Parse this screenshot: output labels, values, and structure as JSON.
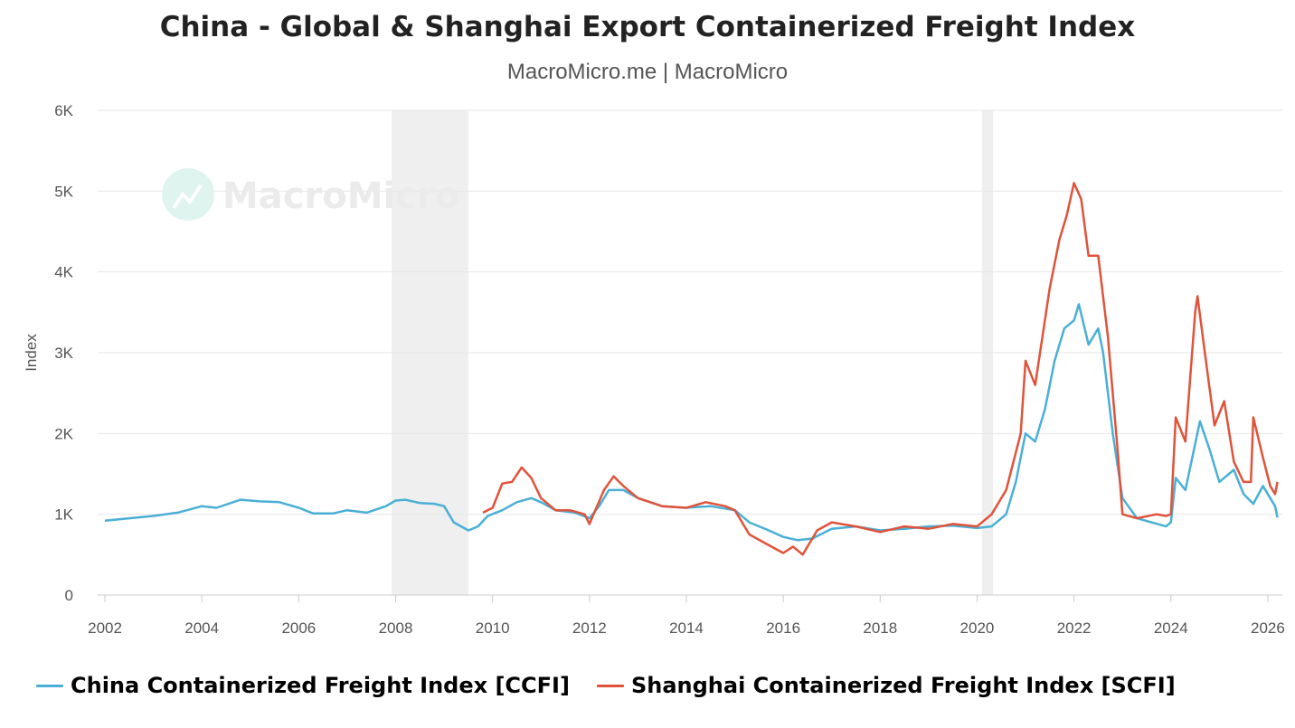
{
  "header": {
    "title": "China - Global & Shanghai Export Containerized Freight Index",
    "subtitle": "MacroMicro.me | MacroMicro"
  },
  "watermark": {
    "text": "MacroMicro",
    "icon": "chart-logo-icon"
  },
  "colors": {
    "ccfi": "#4aafd6",
    "scfi": "#e0533a",
    "recession": "#efefef",
    "grid": "#e6e6e6"
  },
  "chart_data": {
    "type": "line",
    "title": "China - Global & Shanghai Export Containerized Freight Index",
    "subtitle": "MacroMicro.me | MacroMicro",
    "ylabel": "Index",
    "xlabel": "",
    "xlim": [
      2001.85,
      2026.3
    ],
    "ylim": [
      0,
      6000
    ],
    "xticks": [
      2002,
      2004,
      2006,
      2008,
      2010,
      2012,
      2014,
      2016,
      2018,
      2020,
      2022,
      2024,
      2026
    ],
    "yticks": [
      0,
      1000,
      2000,
      3000,
      4000,
      5000,
      6000
    ],
    "ytick_labels": [
      "0",
      "1K",
      "2K",
      "3K",
      "4K",
      "5K",
      "6K"
    ],
    "grid": true,
    "legend_position": "bottom-left",
    "shaded_periods": [
      [
        2007.92,
        2009.5
      ],
      [
        2020.1,
        2020.33
      ]
    ],
    "series": [
      {
        "name": "China Containerized Freight Index [CCFI]",
        "color": "#4aafd6",
        "points": [
          [
            2002.0,
            920
          ],
          [
            2002.5,
            950
          ],
          [
            2003.0,
            980
          ],
          [
            2003.5,
            1020
          ],
          [
            2004.0,
            1100
          ],
          [
            2004.3,
            1080
          ],
          [
            2004.8,
            1180
          ],
          [
            2005.2,
            1160
          ],
          [
            2005.6,
            1150
          ],
          [
            2006.0,
            1080
          ],
          [
            2006.3,
            1010
          ],
          [
            2006.7,
            1010
          ],
          [
            2007.0,
            1050
          ],
          [
            2007.4,
            1020
          ],
          [
            2007.8,
            1100
          ],
          [
            2008.0,
            1170
          ],
          [
            2008.2,
            1180
          ],
          [
            2008.5,
            1140
          ],
          [
            2008.8,
            1130
          ],
          [
            2009.0,
            1100
          ],
          [
            2009.2,
            900
          ],
          [
            2009.5,
            800
          ],
          [
            2009.7,
            850
          ],
          [
            2009.9,
            980
          ],
          [
            2010.2,
            1050
          ],
          [
            2010.5,
            1150
          ],
          [
            2010.8,
            1200
          ],
          [
            2011.0,
            1150
          ],
          [
            2011.3,
            1050
          ],
          [
            2011.7,
            1020
          ],
          [
            2012.0,
            950
          ],
          [
            2012.2,
            1100
          ],
          [
            2012.4,
            1300
          ],
          [
            2012.7,
            1300
          ],
          [
            2013.0,
            1200
          ],
          [
            2013.5,
            1100
          ],
          [
            2014.0,
            1080
          ],
          [
            2014.5,
            1100
          ],
          [
            2015.0,
            1050
          ],
          [
            2015.3,
            900
          ],
          [
            2015.7,
            800
          ],
          [
            2016.0,
            720
          ],
          [
            2016.3,
            680
          ],
          [
            2016.6,
            700
          ],
          [
            2017.0,
            820
          ],
          [
            2017.5,
            850
          ],
          [
            2018.0,
            800
          ],
          [
            2018.5,
            820
          ],
          [
            2019.0,
            850
          ],
          [
            2019.5,
            860
          ],
          [
            2020.0,
            830
          ],
          [
            2020.3,
            850
          ],
          [
            2020.6,
            1000
          ],
          [
            2020.8,
            1400
          ],
          [
            2021.0,
            2000
          ],
          [
            2021.2,
            1900
          ],
          [
            2021.4,
            2300
          ],
          [
            2021.6,
            2900
          ],
          [
            2021.8,
            3300
          ],
          [
            2022.0,
            3400
          ],
          [
            2022.1,
            3600
          ],
          [
            2022.3,
            3100
          ],
          [
            2022.5,
            3300
          ],
          [
            2022.6,
            3000
          ],
          [
            2022.8,
            2000
          ],
          [
            2023.0,
            1200
          ],
          [
            2023.3,
            950
          ],
          [
            2023.6,
            900
          ],
          [
            2023.9,
            850
          ],
          [
            2024.0,
            900
          ],
          [
            2024.1,
            1450
          ],
          [
            2024.3,
            1300
          ],
          [
            2024.6,
            2150
          ],
          [
            2024.8,
            1800
          ],
          [
            2025.0,
            1400
          ],
          [
            2025.3,
            1550
          ],
          [
            2025.5,
            1250
          ],
          [
            2025.7,
            1130
          ],
          [
            2025.9,
            1350
          ],
          [
            2026.0,
            1250
          ],
          [
            2026.15,
            1100
          ],
          [
            2026.2,
            960
          ]
        ]
      },
      {
        "name": "Shanghai Containerized Freight Index [SCFI]",
        "color": "#e0533a",
        "points": [
          [
            2009.8,
            1020
          ],
          [
            2010.0,
            1080
          ],
          [
            2010.2,
            1380
          ],
          [
            2010.4,
            1400
          ],
          [
            2010.6,
            1580
          ],
          [
            2010.8,
            1450
          ],
          [
            2011.0,
            1200
          ],
          [
            2011.3,
            1050
          ],
          [
            2011.6,
            1050
          ],
          [
            2011.9,
            1000
          ],
          [
            2012.0,
            880
          ],
          [
            2012.3,
            1300
          ],
          [
            2012.5,
            1470
          ],
          [
            2012.7,
            1350
          ],
          [
            2013.0,
            1200
          ],
          [
            2013.5,
            1100
          ],
          [
            2014.0,
            1080
          ],
          [
            2014.4,
            1150
          ],
          [
            2014.8,
            1100
          ],
          [
            2015.0,
            1050
          ],
          [
            2015.3,
            750
          ],
          [
            2015.6,
            650
          ],
          [
            2016.0,
            520
          ],
          [
            2016.2,
            600
          ],
          [
            2016.4,
            500
          ],
          [
            2016.7,
            800
          ],
          [
            2017.0,
            900
          ],
          [
            2017.5,
            850
          ],
          [
            2018.0,
            780
          ],
          [
            2018.5,
            850
          ],
          [
            2019.0,
            820
          ],
          [
            2019.5,
            880
          ],
          [
            2020.0,
            850
          ],
          [
            2020.3,
            1000
          ],
          [
            2020.6,
            1300
          ],
          [
            2020.9,
            2000
          ],
          [
            2021.0,
            2900
          ],
          [
            2021.2,
            2600
          ],
          [
            2021.5,
            3800
          ],
          [
            2021.7,
            4400
          ],
          [
            2021.85,
            4700
          ],
          [
            2022.0,
            5100
          ],
          [
            2022.15,
            4900
          ],
          [
            2022.3,
            4200
          ],
          [
            2022.5,
            4200
          ],
          [
            2022.7,
            3200
          ],
          [
            2022.9,
            1800
          ],
          [
            2023.0,
            1000
          ],
          [
            2023.3,
            950
          ],
          [
            2023.7,
            1000
          ],
          [
            2023.9,
            980
          ],
          [
            2024.0,
            1000
          ],
          [
            2024.1,
            2200
          ],
          [
            2024.3,
            1900
          ],
          [
            2024.5,
            3500
          ],
          [
            2024.55,
            3700
          ],
          [
            2024.7,
            3000
          ],
          [
            2024.9,
            2100
          ],
          [
            2025.1,
            2400
          ],
          [
            2025.3,
            1650
          ],
          [
            2025.5,
            1400
          ],
          [
            2025.65,
            1400
          ],
          [
            2025.7,
            2200
          ],
          [
            2025.9,
            1700
          ],
          [
            2026.05,
            1350
          ],
          [
            2026.15,
            1250
          ],
          [
            2026.2,
            1400
          ]
        ]
      }
    ]
  }
}
